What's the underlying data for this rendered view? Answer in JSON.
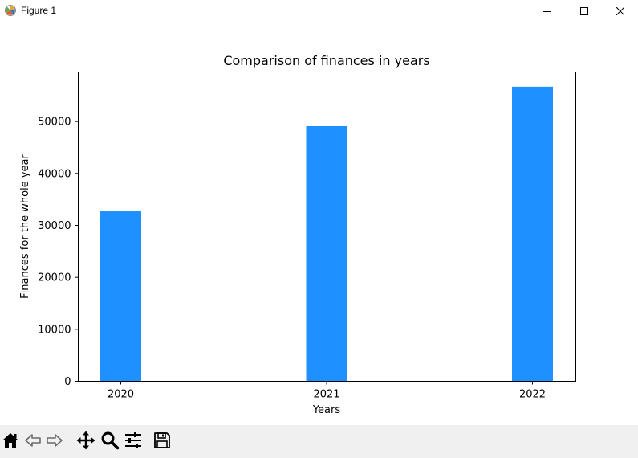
{
  "window": {
    "title": "Figure 1",
    "controls": [
      "minimize",
      "maximize",
      "close"
    ]
  },
  "toolbar": {
    "icons": [
      "home-icon",
      "back-icon",
      "forward-icon",
      "pan-icon",
      "zoom-icon",
      "configure-subplots-icon",
      "save-icon"
    ]
  },
  "chart_data": {
    "type": "bar",
    "title": "Comparison of finances in years",
    "xlabel": "Years",
    "ylabel": "Finances for the whole year",
    "categories": [
      "2020",
      "2021",
      "2022"
    ],
    "values": [
      32700,
      49100,
      56700
    ],
    "yticks": [
      0,
      10000,
      20000,
      30000,
      40000,
      50000
    ],
    "ytick_labels": [
      "0",
      "10000",
      "20000",
      "30000",
      "40000",
      "50000"
    ],
    "ylim": [
      0,
      59535
    ],
    "grid": false,
    "bar_color": "#1e90ff"
  }
}
